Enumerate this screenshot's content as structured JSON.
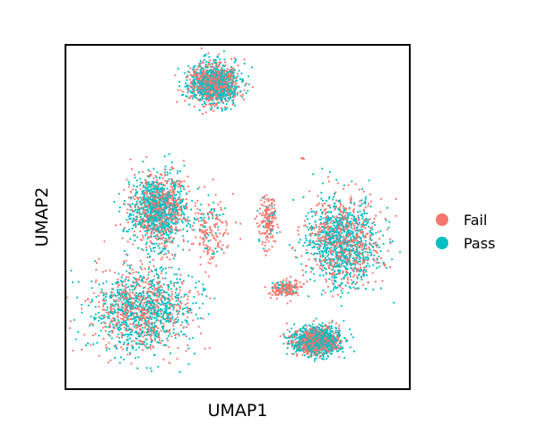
{
  "chart_data": {
    "type": "scatter",
    "title": "",
    "xlabel": "UMAP1",
    "ylabel": "UMAP2",
    "show_ticks": false,
    "grid": false,
    "legend": {
      "placement": "right",
      "entries": [
        "Fail",
        "Pass"
      ]
    },
    "colors": {
      "Fail": "#F8766D",
      "Pass": "#00BFC4"
    },
    "xlim": [
      0,
      10
    ],
    "ylim": [
      0,
      10
    ],
    "series": [
      {
        "name": "Fail",
        "color": "#F8766D"
      },
      {
        "name": "Pass",
        "color": "#00BFC4"
      }
    ],
    "clusters": [
      {
        "label": "cluster-top",
        "center": [
          4.3,
          8.9
        ],
        "spread": [
          0.8,
          0.65
        ],
        "fail_share": 0.45,
        "density": "high"
      },
      {
        "label": "cluster-left-upper",
        "center": [
          2.7,
          5.2
        ],
        "spread": [
          0.9,
          1.15
        ],
        "fail_share": 0.45,
        "density": "high"
      },
      {
        "label": "cluster-left-lower",
        "center": [
          2.2,
          2.3
        ],
        "spread": [
          1.6,
          1.3
        ],
        "fail_share": 0.45,
        "density": "high"
      },
      {
        "label": "cluster-right",
        "center": [
          8.1,
          4.3
        ],
        "spread": [
          1.2,
          1.4
        ],
        "fail_share": 0.42,
        "density": "high"
      },
      {
        "label": "cluster-bottom-right",
        "center": [
          7.3,
          1.4
        ],
        "spread": [
          0.75,
          0.45
        ],
        "fail_share": 0.4,
        "density": "high"
      },
      {
        "label": "strand-middle",
        "center": [
          4.2,
          4.6
        ],
        "spread": [
          0.6,
          1.2
        ],
        "fail_share": 0.75,
        "density": "low"
      },
      {
        "label": "strand-center-right",
        "center": [
          5.9,
          4.9
        ],
        "spread": [
          0.3,
          0.8
        ],
        "fail_share": 0.85,
        "density": "low"
      },
      {
        "label": "bridge-right",
        "center": [
          6.4,
          2.9
        ],
        "spread": [
          0.5,
          0.3
        ],
        "fail_share": 0.85,
        "density": "low"
      },
      {
        "label": "outlier-top-right",
        "center": [
          6.9,
          6.7
        ],
        "spread": [
          0.05,
          0.05
        ],
        "fail_share": 1.0,
        "density": "low"
      }
    ]
  }
}
